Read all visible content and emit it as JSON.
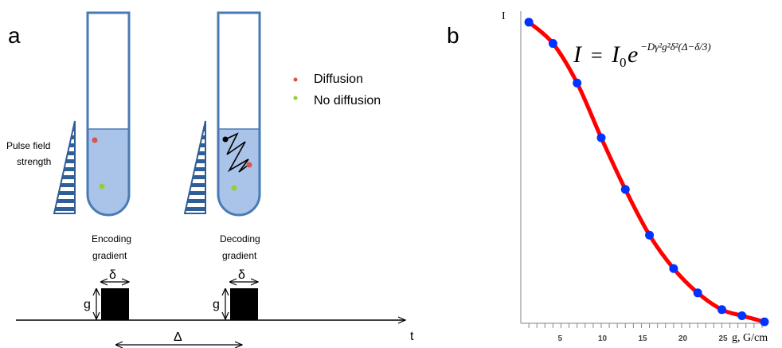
{
  "panel_a": {
    "label": "a",
    "pulse_label_line1": "Pulse field",
    "pulse_label_line2": "strength",
    "legend": [
      {
        "label": "Diffusion",
        "color": "#d9534f"
      },
      {
        "label": "No diffusion",
        "color": "#9acd32"
      }
    ],
    "encoding_line1": "Encoding",
    "encoding_line2": "gradient",
    "decoding_line1": "Decoding",
    "decoding_line2": "gradient",
    "delta_small": "δ",
    "g_label": "g",
    "delta_big": "Δ",
    "t_label": "t",
    "colors": {
      "tube_stroke": "#4a7ab5",
      "liquid": "#a9c4e8",
      "pulse": "#000000"
    }
  },
  "panel_b": {
    "label": "b",
    "y_label": "I",
    "x_label": "g, G/cm",
    "formula": {
      "lhs": "I",
      "eq": "=",
      "base": "I",
      "sub": "0",
      "e": "e",
      "exponent": "−Dγ²g²δ²(Δ−δ/3)"
    },
    "colors": {
      "curve": "#ff0000",
      "points": "#0033ff"
    },
    "chart_data": {
      "type": "scatter",
      "title": "",
      "xlabel": "g, G/cm",
      "ylabel": "I",
      "x_ticks": [
        5,
        10,
        15,
        20,
        25
      ],
      "xlim": [
        0,
        30.5
      ],
      "ylim": [
        0.0,
        1.0
      ],
      "series": [
        {
          "x": [
            1,
            4,
            7,
            10,
            13,
            16,
            19,
            22,
            25,
            27.5,
            30.3
          ],
          "y": [
            0.99,
            0.92,
            0.79,
            0.61,
            0.44,
            0.29,
            0.18,
            0.1,
            0.045,
            0.025,
            0.005
          ]
        }
      ]
    }
  }
}
